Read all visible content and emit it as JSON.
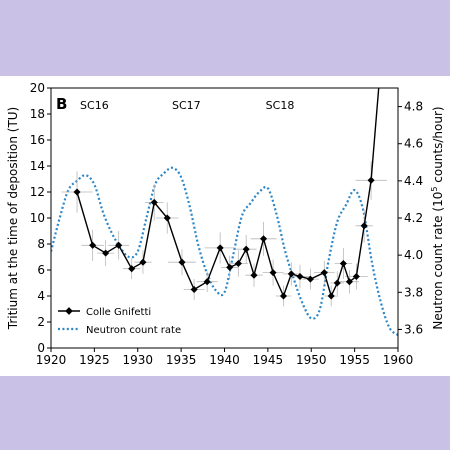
{
  "chart_data": {
    "type": "line",
    "panel_label": "B",
    "ylabel_left": "Tritium at the time of deposition (TU)",
    "ylabel_right_main": "Neutron count rate (10",
    "ylabel_right_exp": "5",
    "ylabel_right_tail": " counts/hour)",
    "xlim": [
      1920,
      1960
    ],
    "ylim_left": [
      0,
      20
    ],
    "ylim_right": [
      3.5,
      4.9
    ],
    "x_ticks": [
      "1920",
      "1925",
      "1930",
      "1935",
      "1940",
      "1945",
      "1950",
      "1955",
      "1960"
    ],
    "y_ticks_left": [
      "0",
      "2",
      "4",
      "6",
      "8",
      "10",
      "12",
      "14",
      "16",
      "18",
      "20"
    ],
    "y_ticks_right": [
      "3.6",
      "3.8",
      "4.0",
      "4.2",
      "4.4",
      "4.6",
      "4.8"
    ],
    "annotations": [
      {
        "text": "SC16",
        "x": 1925,
        "y": 18.7
      },
      {
        "text": "SC17",
        "x": 1935.6,
        "y": 18.7
      },
      {
        "text": "SC18",
        "x": 1946.4,
        "y": 18.7
      }
    ],
    "legend": {
      "position": "lower-left",
      "entries": [
        "Colle Gnifetti",
        "Neutron count rate"
      ]
    },
    "series": [
      {
        "name": "Colle Gnifetti",
        "color": "#000000",
        "points": [
          {
            "x": 1923.0,
            "y": 12.0,
            "xerr": 1.8,
            "yerr": 1.6
          },
          {
            "x": 1924.8,
            "y": 7.9,
            "xerr": 1.3,
            "yerr": 1.2
          },
          {
            "x": 1926.3,
            "y": 7.3,
            "xerr": 1.0,
            "yerr": 1.0
          },
          {
            "x": 1927.8,
            "y": 7.9,
            "xerr": 1.2,
            "yerr": 1.1
          },
          {
            "x": 1929.3,
            "y": 6.1,
            "xerr": 1.0,
            "yerr": 0.8
          },
          {
            "x": 1930.6,
            "y": 6.6,
            "xerr": 1.0,
            "yerr": 0.9
          },
          {
            "x": 1931.9,
            "y": 11.2,
            "xerr": 1.1,
            "yerr": 1.4
          },
          {
            "x": 1933.4,
            "y": 10.0,
            "xerr": 1.3,
            "yerr": 1.2
          },
          {
            "x": 1935.1,
            "y": 6.6,
            "xerr": 1.6,
            "yerr": 1.0
          },
          {
            "x": 1936.5,
            "y": 4.5,
            "xerr": 1.2,
            "yerr": 0.8
          },
          {
            "x": 1938.0,
            "y": 5.1,
            "xerr": 1.2,
            "yerr": 0.8
          },
          {
            "x": 1939.5,
            "y": 7.7,
            "xerr": 1.8,
            "yerr": 1.2
          },
          {
            "x": 1940.6,
            "y": 6.2,
            "xerr": 1.0,
            "yerr": 0.9
          },
          {
            "x": 1941.6,
            "y": 6.5,
            "xerr": 1.1,
            "yerr": 1.0
          },
          {
            "x": 1942.5,
            "y": 7.6,
            "xerr": 1.2,
            "yerr": 1.1
          },
          {
            "x": 1943.4,
            "y": 5.6,
            "xerr": 1.0,
            "yerr": 0.9
          },
          {
            "x": 1944.5,
            "y": 8.4,
            "xerr": 1.5,
            "yerr": 1.3
          },
          {
            "x": 1945.6,
            "y": 5.8,
            "xerr": 1.2,
            "yerr": 1.0
          },
          {
            "x": 1946.8,
            "y": 4.0,
            "xerr": 0.9,
            "yerr": 0.8
          },
          {
            "x": 1947.7,
            "y": 5.7,
            "xerr": 1.0,
            "yerr": 0.9
          },
          {
            "x": 1948.7,
            "y": 5.5,
            "xerr": 1.2,
            "yerr": 0.9
          },
          {
            "x": 1949.9,
            "y": 5.3,
            "xerr": 1.0,
            "yerr": 0.8
          },
          {
            "x": 1951.5,
            "y": 5.8,
            "xerr": 1.2,
            "yerr": 0.9
          },
          {
            "x": 1952.3,
            "y": 4.0,
            "xerr": 0.8,
            "yerr": 0.8
          },
          {
            "x": 1953.0,
            "y": 5.0,
            "xerr": 0.8,
            "yerr": 0.9
          },
          {
            "x": 1953.7,
            "y": 6.5,
            "xerr": 1.0,
            "yerr": 1.2
          },
          {
            "x": 1954.4,
            "y": 5.1,
            "xerr": 1.1,
            "yerr": 0.9
          },
          {
            "x": 1955.2,
            "y": 5.5,
            "xerr": 1.3,
            "yerr": 1.0
          },
          {
            "x": 1956.1,
            "y": 9.4,
            "xerr": 1.0,
            "yerr": 1.3
          },
          {
            "x": 1956.9,
            "y": 12.9,
            "xerr": 1.8,
            "yerr": 1.5
          },
          {
            "x": 1957.9,
            "y": 21.0,
            "xerr": 0,
            "yerr": 0
          }
        ]
      },
      {
        "name": "Neutron count rate",
        "color": "#2a86c9",
        "axis": "right",
        "x": [
          1920,
          1921,
          1922,
          1923,
          1924,
          1925,
          1926,
          1927,
          1928,
          1929,
          1930,
          1931,
          1932,
          1933,
          1934,
          1935,
          1936,
          1937,
          1938,
          1939,
          1940,
          1941,
          1942,
          1943,
          1944,
          1945,
          1946,
          1947,
          1948,
          1949,
          1950,
          1951,
          1952,
          1953,
          1954,
          1955,
          1956,
          1957,
          1958,
          1959,
          1960
        ],
        "y": [
          4.02,
          4.2,
          4.35,
          4.4,
          4.43,
          4.38,
          4.23,
          4.12,
          4.04,
          3.99,
          4.02,
          4.2,
          4.38,
          4.44,
          4.47,
          4.42,
          4.26,
          4.05,
          3.9,
          3.81,
          3.8,
          4.0,
          4.21,
          4.28,
          4.34,
          4.36,
          4.22,
          4.02,
          3.87,
          3.74,
          3.66,
          3.71,
          3.97,
          4.18,
          4.27,
          4.35,
          4.24,
          3.96,
          3.75,
          3.61,
          3.57
        ]
      }
    ]
  }
}
